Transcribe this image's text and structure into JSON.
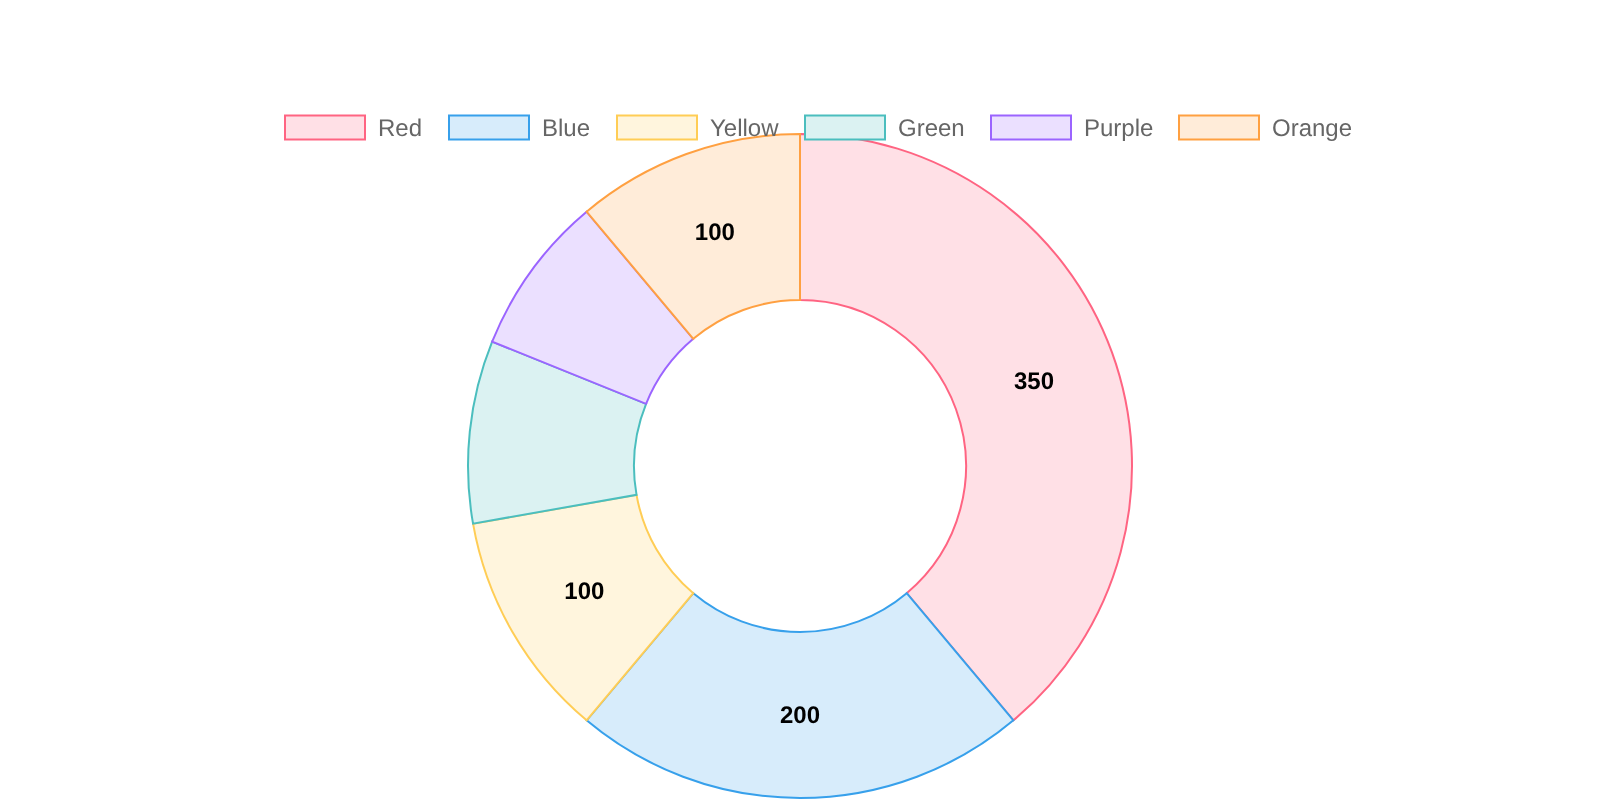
{
  "chart_data": {
    "type": "donut",
    "categories": [
      "Red",
      "Blue",
      "Yellow",
      "Green",
      "Purple",
      "Orange"
    ],
    "values": [
      350,
      200,
      100,
      80,
      70,
      100
    ],
    "colors": [
      "#ffe0e6",
      "#d7ecfb",
      "#fff5dd",
      "#dbf2f2",
      "#ebe0ff",
      "#ffecd9"
    ],
    "value_labels": [
      "350",
      "200",
      "100",
      null,
      null,
      "100"
    ],
    "legend": "top"
  }
}
